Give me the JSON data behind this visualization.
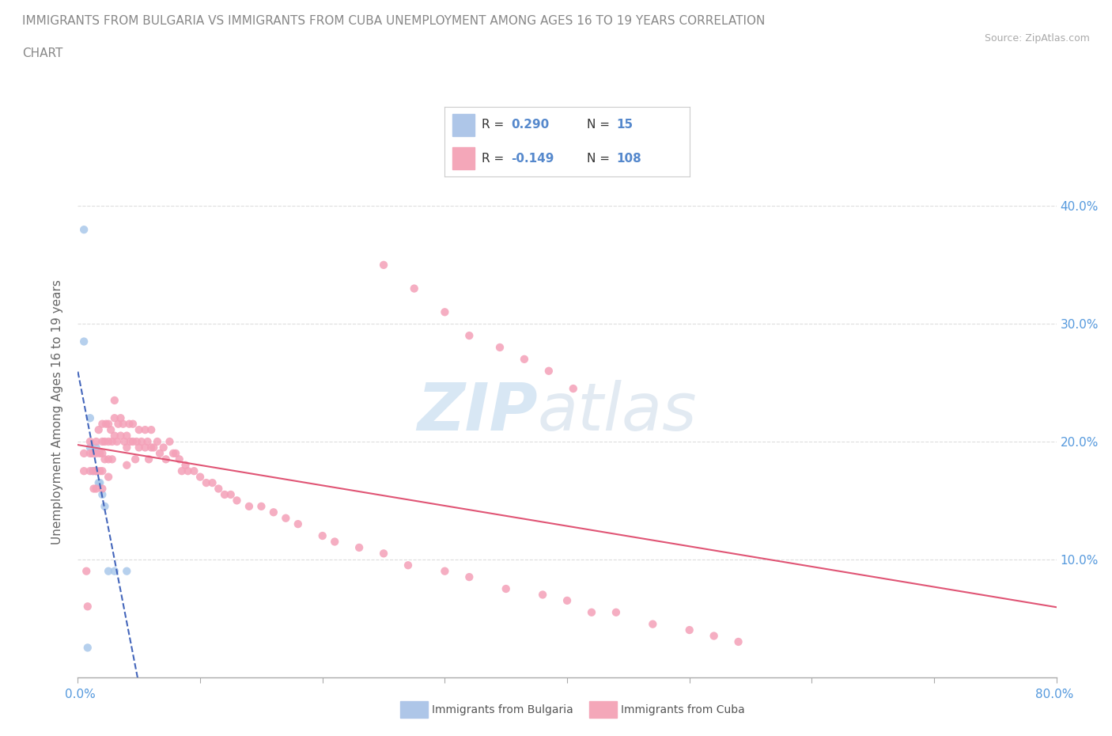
{
  "title_line1": "IMMIGRANTS FROM BULGARIA VS IMMIGRANTS FROM CUBA UNEMPLOYMENT AMONG AGES 16 TO 19 YEARS CORRELATION",
  "title_line2": "CHART",
  "source_text": "Source: ZipAtlas.com",
  "ylabel": "Unemployment Among Ages 16 to 19 years",
  "ylabel_right_ticks": [
    "10.0%",
    "20.0%",
    "30.0%",
    "40.0%"
  ],
  "ylabel_right_vals": [
    0.1,
    0.2,
    0.3,
    0.4
  ],
  "xlim": [
    0.0,
    0.8
  ],
  "ylim": [
    0.0,
    0.45
  ],
  "legend_bulgaria_color": "#aec6e8",
  "legend_cuba_color": "#f4a7b9",
  "legend_bulgaria_label": "Immigrants from Bulgaria",
  "legend_cuba_label": "Immigrants from Cuba",
  "legend_R_bulgaria": "0.290",
  "legend_N_bulgaria": "15",
  "legend_R_cuba": "-0.149",
  "legend_N_cuba": "108",
  "bulgaria_scatter_color": "#aac8ea",
  "cuba_scatter_color": "#f4a0b8",
  "trendline_bulgaria_color": "#4466bb",
  "trendline_cuba_color": "#e05575",
  "grid_color": "#dddddd",
  "title_color": "#777777",
  "bg_color": "#ffffff",
  "bulgaria_x": [
    0.005,
    0.005,
    0.008,
    0.01,
    0.01,
    0.012,
    0.015,
    0.015,
    0.017,
    0.018,
    0.02,
    0.022,
    0.025,
    0.03,
    0.04
  ],
  "bulgaria_y": [
    0.38,
    0.285,
    0.025,
    0.22,
    0.195,
    0.175,
    0.195,
    0.175,
    0.165,
    0.165,
    0.155,
    0.145,
    0.09,
    0.09,
    0.09
  ],
  "cuba_x": [
    0.005,
    0.005,
    0.007,
    0.008,
    0.01,
    0.01,
    0.01,
    0.012,
    0.013,
    0.013,
    0.015,
    0.015,
    0.015,
    0.015,
    0.017,
    0.018,
    0.018,
    0.02,
    0.02,
    0.02,
    0.02,
    0.02,
    0.022,
    0.022,
    0.023,
    0.025,
    0.025,
    0.025,
    0.025,
    0.027,
    0.028,
    0.028,
    0.03,
    0.03,
    0.03,
    0.032,
    0.033,
    0.035,
    0.035,
    0.037,
    0.038,
    0.04,
    0.04,
    0.04,
    0.042,
    0.043,
    0.045,
    0.045,
    0.047,
    0.048,
    0.05,
    0.05,
    0.052,
    0.055,
    0.055,
    0.057,
    0.058,
    0.06,
    0.06,
    0.062,
    0.065,
    0.067,
    0.07,
    0.072,
    0.075,
    0.078,
    0.08,
    0.083,
    0.085,
    0.088,
    0.09,
    0.095,
    0.1,
    0.105,
    0.11,
    0.115,
    0.12,
    0.125,
    0.13,
    0.14,
    0.15,
    0.16,
    0.17,
    0.18,
    0.2,
    0.21,
    0.23,
    0.25,
    0.27,
    0.3,
    0.32,
    0.35,
    0.38,
    0.4,
    0.42,
    0.44,
    0.47,
    0.5,
    0.52,
    0.54,
    0.25,
    0.275,
    0.3,
    0.32,
    0.345,
    0.365,
    0.385,
    0.405
  ],
  "cuba_y": [
    0.19,
    0.175,
    0.09,
    0.06,
    0.2,
    0.19,
    0.175,
    0.19,
    0.175,
    0.16,
    0.2,
    0.19,
    0.175,
    0.16,
    0.21,
    0.19,
    0.175,
    0.215,
    0.2,
    0.19,
    0.175,
    0.16,
    0.2,
    0.185,
    0.215,
    0.215,
    0.2,
    0.185,
    0.17,
    0.21,
    0.2,
    0.185,
    0.235,
    0.22,
    0.205,
    0.2,
    0.215,
    0.22,
    0.205,
    0.215,
    0.2,
    0.205,
    0.195,
    0.18,
    0.215,
    0.2,
    0.215,
    0.2,
    0.185,
    0.2,
    0.21,
    0.195,
    0.2,
    0.21,
    0.195,
    0.2,
    0.185,
    0.21,
    0.195,
    0.195,
    0.2,
    0.19,
    0.195,
    0.185,
    0.2,
    0.19,
    0.19,
    0.185,
    0.175,
    0.18,
    0.175,
    0.175,
    0.17,
    0.165,
    0.165,
    0.16,
    0.155,
    0.155,
    0.15,
    0.145,
    0.145,
    0.14,
    0.135,
    0.13,
    0.12,
    0.115,
    0.11,
    0.105,
    0.095,
    0.09,
    0.085,
    0.075,
    0.07,
    0.065,
    0.055,
    0.055,
    0.045,
    0.04,
    0.035,
    0.03,
    0.35,
    0.33,
    0.31,
    0.29,
    0.28,
    0.27,
    0.26,
    0.245
  ]
}
